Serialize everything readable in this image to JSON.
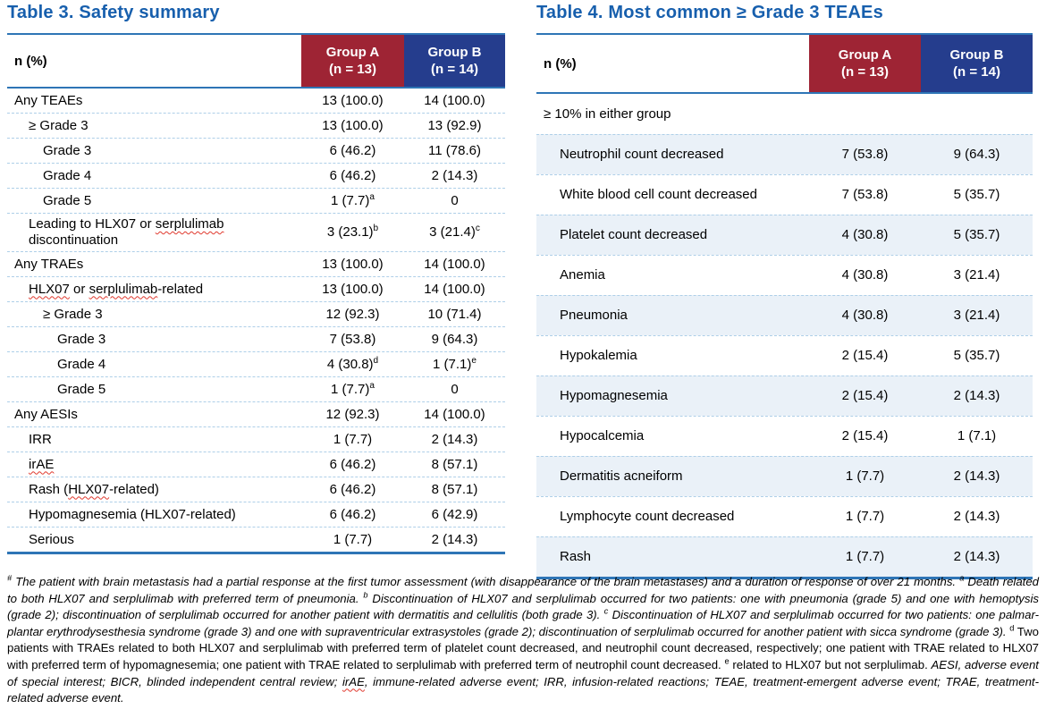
{
  "colors": {
    "title_blue": "#175fad",
    "group_a_red": "#9e2434",
    "group_b_blue": "#253d8d",
    "table_border_blue": "#2e75b6",
    "row_separator_blue": "#aecfe8",
    "row_stripe_blue": "#eaf1f8",
    "spellcheck_red": "#e0392e"
  },
  "table3": {
    "title": "Table 3. Safety summary",
    "col_header": "n (%)",
    "group_a_line1": "Group A",
    "group_a_line2": "(n = 13)",
    "group_b_line1": "Group B",
    "group_b_line2": "(n = 14)",
    "indent_step": 16,
    "rows": [
      {
        "label": "Any TEAEs",
        "indent": 0,
        "a": "13 (100.0)",
        "b": "14 (100.0)"
      },
      {
        "label": "≥ Grade 3",
        "indent": 1,
        "a": "13 (100.0)",
        "b": "13 (92.9)"
      },
      {
        "label": "Grade 3",
        "indent": 2,
        "a": "6 (46.2)",
        "b": "11 (78.6)"
      },
      {
        "label": "Grade 4",
        "indent": 2,
        "a": "6 (46.2)",
        "b": "2 (14.3)"
      },
      {
        "label": "Grade 5",
        "indent": 2,
        "a": "1 (7.7)",
        "a_sup": "a",
        "b": "0"
      },
      {
        "label": "Leading to HLX07 or serplulimab discontinuation",
        "indent": 1,
        "a": "3 (23.1)",
        "a_sup": "b",
        "b": "3 (21.4)",
        "b_sup": "c",
        "wavy": [
          "serplulimab"
        ]
      },
      {
        "label": "Any TRAEs",
        "indent": 0,
        "a": "13 (100.0)",
        "b": "14 (100.0)"
      },
      {
        "label": "HLX07 or serplulimab-related",
        "indent": 1,
        "a": "13 (100.0)",
        "b": "14 (100.0)",
        "wavy": [
          "HLX07",
          "serplulimab"
        ]
      },
      {
        "label": "≥ Grade 3",
        "indent": 2,
        "a": "12 (92.3)",
        "b": "10 (71.4)"
      },
      {
        "label": "Grade 3",
        "indent": 3,
        "a": "7 (53.8)",
        "b": "9 (64.3)"
      },
      {
        "label": "Grade 4",
        "indent": 3,
        "a": "4 (30.8)",
        "a_sup": "d",
        "b": "1 (7.1)",
        "b_sup": "e"
      },
      {
        "label": "Grade 5",
        "indent": 3,
        "a": "1 (7.7)",
        "a_sup": "a",
        "b": "0"
      },
      {
        "label": "Any AESIs",
        "indent": 0,
        "a": "12 (92.3)",
        "b": "14 (100.0)"
      },
      {
        "label": "IRR",
        "indent": 1,
        "a": "1 (7.7)",
        "b": "2 (14.3)"
      },
      {
        "label": "irAE",
        "indent": 1,
        "a": "6 (46.2)",
        "b": "8 (57.1)",
        "wavy": [
          "irAE"
        ]
      },
      {
        "label": "Rash (HLX07-related)",
        "indent": 1,
        "a": "6 (46.2)",
        "b": "8 (57.1)",
        "wavy": [
          "HLX07"
        ]
      },
      {
        "label": "Hypomagnesemia (HLX07-related)",
        "indent": 1,
        "a": "6 (46.2)",
        "b": "6 (42.9)"
      },
      {
        "label": "Serious",
        "indent": 1,
        "a": "1 (7.7)",
        "b": "2 (14.3)"
      }
    ]
  },
  "table4": {
    "title": "Table 4. Most common ≥ Grade 3 TEAEs",
    "col_header": "n (%)",
    "group_a_line1": "Group A",
    "group_a_line2": "(n = 13)",
    "group_b_line1": "Group B",
    "group_b_line2": "(n = 14)",
    "indent_step": 18,
    "rows": [
      {
        "label": "≥ 10% in either group",
        "indent": 0,
        "section": true
      },
      {
        "label": "Neutrophil count decreased",
        "indent": 1,
        "a": "7 (53.8)",
        "b": "9 (64.3)",
        "shade": true
      },
      {
        "label": "White blood cell count decreased",
        "indent": 1,
        "a": "7 (53.8)",
        "b": "5 (35.7)"
      },
      {
        "label": "Platelet count decreased",
        "indent": 1,
        "a": "4 (30.8)",
        "b": "5 (35.7)",
        "shade": true
      },
      {
        "label": "Anemia",
        "indent": 1,
        "a": "4 (30.8)",
        "b": "3 (21.4)"
      },
      {
        "label": "Pneumonia",
        "indent": 1,
        "a": "4 (30.8)",
        "b": "3 (21.4)",
        "shade": true
      },
      {
        "label": "Hypokalemia",
        "indent": 1,
        "a": "2 (15.4)",
        "b": "5 (35.7)"
      },
      {
        "label": "Hypomagnesemia",
        "indent": 1,
        "a": "2 (15.4)",
        "b": "2 (14.3)",
        "shade": true
      },
      {
        "label": "Hypocalcemia",
        "indent": 1,
        "a": "2 (15.4)",
        "b": "1 (7.1)"
      },
      {
        "label": "Dermatitis acneiform",
        "indent": 1,
        "a": "1 (7.7)",
        "b": "2 (14.3)",
        "shade": true
      },
      {
        "label": "Lymphocyte count decreased",
        "indent": 1,
        "a": "1 (7.7)",
        "b": "2 (14.3)"
      },
      {
        "label": "Rash",
        "indent": 1,
        "a": "1 (7.7)",
        "b": "2 (14.3)",
        "shade": true
      }
    ]
  },
  "footnote": {
    "segments": [
      {
        "t": "#",
        "s": true,
        "i": true
      },
      {
        "t": " The patient with brain metastasis had a partial response at the first tumor assessment (with disappearance of the brain metastases) and a duration of response of over 21 months. ",
        "i": true
      },
      {
        "t": "a",
        "s": true,
        "i": true
      },
      {
        "t": " Death related to both HLX07 and serplulimab with preferred term of pneumonia. ",
        "i": true
      },
      {
        "t": "b",
        "s": true,
        "i": true
      },
      {
        "t": " Discontinuation of HLX07 and serplulimab occurred for two patients: one with pneumonia (grade 5) and one with hemoptysis (grade 2); discontinuation of serplulimab occurred for another patient with dermatitis and cellulitis (both grade 3). ",
        "i": true
      },
      {
        "t": "c",
        "s": true,
        "i": true
      },
      {
        "t": " Discontinuation of HLX07 and serplulimab occurred for two patients: one palmar-plantar erythrodysesthesia syndrome (grade 3) and one with supraventricular extrasystoles (grade 2); discontinuation of serplulimab occurred for another patient with sicca syndrome (grade 3). ",
        "i": true
      },
      {
        "t": "d",
        "s": true,
        "i": false
      },
      {
        "t": " Two patients with TRAEs related to both HLX07 and serplulimab with preferred term of platelet count decreased, and neutrophil count decreased, respectively; one patient with TRAE related to HLX07 with preferred term of hypomagnesemia; one patient with TRAE related to serplulimab with preferred term of neutrophil count decreased. ",
        "i": false
      },
      {
        "t": "e",
        "s": true,
        "i": false
      },
      {
        "t": " related to HLX07 but not serplulimab. ",
        "i": false
      },
      {
        "t": "AESI, adverse event of special interest; BICR, blinded independent central review; ",
        "i": true
      },
      {
        "t": "irAE",
        "i": true,
        "w": true
      },
      {
        "t": ", immune-related adverse event; IRR, infusion-related reactions; TEAE, treatment-emergent adverse event; TRAE, treatment-related adverse event.",
        "i": true
      }
    ]
  }
}
